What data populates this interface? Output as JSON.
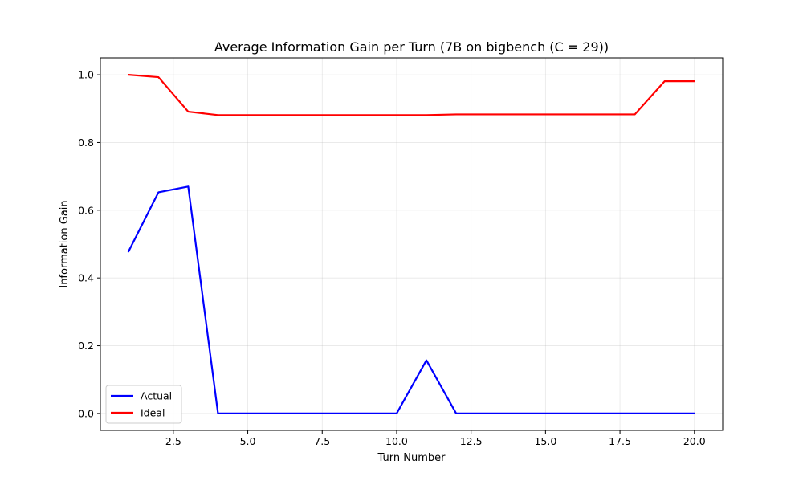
{
  "chart_data": {
    "type": "line",
    "title": "Average Information Gain per Turn (7B on bigbench (C = 29))",
    "xlabel": "Turn Number",
    "ylabel": "Information Gain",
    "xlim": [
      0.05,
      20.95
    ],
    "ylim": [
      -0.05,
      1.05
    ],
    "x_ticks": [
      2.5,
      5.0,
      7.5,
      10.0,
      12.5,
      15.0,
      17.5,
      20.0
    ],
    "x_tick_labels": [
      "2.5",
      "5.0",
      "7.5",
      "10.0",
      "12.5",
      "15.0",
      "17.5",
      "20.0"
    ],
    "y_ticks": [
      0.0,
      0.2,
      0.4,
      0.6,
      0.8,
      1.0
    ],
    "y_tick_labels": [
      "0.0",
      "0.2",
      "0.4",
      "0.6",
      "0.8",
      "1.0"
    ],
    "grid": true,
    "legend_position": "lower-left",
    "x": [
      1,
      2,
      3,
      4,
      5,
      6,
      7,
      8,
      9,
      10,
      11,
      12,
      13,
      14,
      15,
      16,
      17,
      18,
      19,
      20
    ],
    "series": [
      {
        "name": "Actual",
        "color": "#0000ff",
        "values": [
          0.479,
          0.653,
          0.67,
          0.0,
          0.0,
          0.0,
          0.0,
          0.0,
          0.0,
          0.0,
          0.157,
          0.0,
          0.0,
          0.0,
          0.0,
          0.0,
          0.0,
          0.0,
          0.0,
          0.0
        ]
      },
      {
        "name": "Ideal",
        "color": "#ff0000",
        "values": [
          1.0,
          0.993,
          0.891,
          0.881,
          0.881,
          0.881,
          0.881,
          0.881,
          0.881,
          0.881,
          0.881,
          0.883,
          0.883,
          0.883,
          0.883,
          0.883,
          0.883,
          0.883,
          0.981,
          0.981
        ]
      }
    ]
  }
}
